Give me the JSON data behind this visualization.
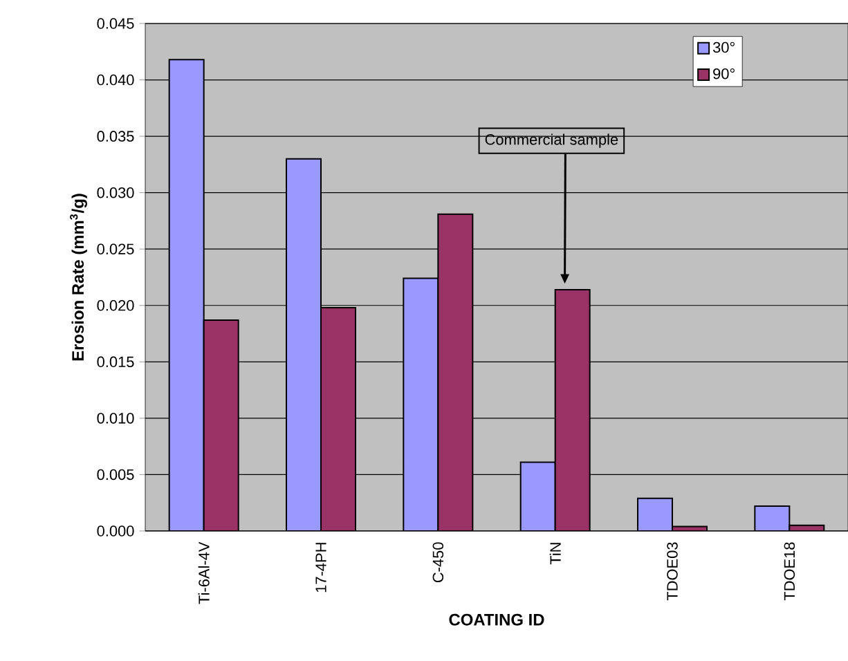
{
  "chart_data": {
    "type": "bar",
    "xlabel": "COATING ID",
    "ylabel": "Erosion Rate (mm$^{3}$/g)",
    "categories": [
      "Ti-6Al-4V",
      "17-4PH",
      "C-450",
      "TiN",
      "TDOE03",
      "TDOE18"
    ],
    "series": [
      {
        "name": "30°",
        "color": "#9999ff",
        "values": [
          0.0418,
          0.033,
          0.0224,
          0.0061,
          0.0029,
          0.0022
        ]
      },
      {
        "name": "90°",
        "color": "#993366",
        "values": [
          0.0187,
          0.0198,
          0.0281,
          0.0214,
          0.0004,
          0.0005
        ]
      }
    ],
    "ylim": [
      0,
      0.045
    ],
    "yticks": [
      {
        "value": 0,
        "label": "0.000"
      },
      {
        "value": 0.005,
        "label": "0.005"
      },
      {
        "value": 0.01,
        "label": "0.010"
      },
      {
        "value": 0.015,
        "label": "0.015"
      },
      {
        "value": 0.02,
        "label": "0.020"
      },
      {
        "value": 0.025,
        "label": "0.025"
      },
      {
        "value": 0.03,
        "label": "0.030"
      },
      {
        "value": 0.035,
        "label": "0.035"
      },
      {
        "value": 0.04,
        "label": "0.040"
      },
      {
        "value": 0.045,
        "label": "0.045"
      }
    ],
    "grid": "y",
    "legend": "top right",
    "annotations": [
      "Commercial sample"
    ]
  }
}
